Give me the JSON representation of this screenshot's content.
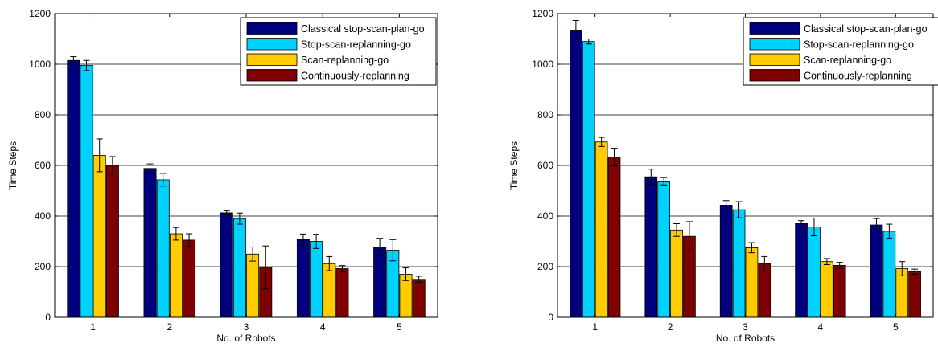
{
  "colors": {
    "series": [
      "#00007f",
      "#00d2ff",
      "#ffcc00",
      "#7f0000"
    ],
    "grid": "#000000",
    "background": "#ffffff"
  },
  "chart_data": [
    {
      "type": "bar",
      "title": "",
      "xlabel": "No. of Robots",
      "ylabel": "Time Steps",
      "ylim": [
        0,
        1200
      ],
      "yticks": [
        "0",
        "200",
        "400",
        "600",
        "800",
        "1000",
        "1200"
      ],
      "categories": [
        "1",
        "2",
        "3",
        "4",
        "5"
      ],
      "grid": "horizontal",
      "legend_position": "top-right",
      "error_bars": true,
      "series": [
        {
          "name": "Classical stop-scan-plan-go",
          "values": [
            1015,
            588,
            413,
            307,
            277
          ],
          "errors": [
            15,
            18,
            8,
            22,
            35
          ]
        },
        {
          "name": "Stop-scan-replanning-go",
          "values": [
            995,
            543,
            390,
            300,
            265
          ],
          "errors": [
            20,
            25,
            22,
            28,
            42
          ]
        },
        {
          "name": "Scan-replanning-go",
          "values": [
            640,
            330,
            250,
            212,
            170
          ],
          "errors": [
            65,
            25,
            28,
            28,
            25
          ]
        },
        {
          "name": "Continuously-replanning",
          "values": [
            600,
            305,
            197,
            192,
            150
          ],
          "errors": [
            35,
            25,
            85,
            12,
            12
          ]
        }
      ]
    },
    {
      "type": "bar",
      "title": "",
      "xlabel": "No. of Robots",
      "ylabel": "Time Steps",
      "ylim": [
        0,
        1200
      ],
      "yticks": [
        "0",
        "200",
        "400",
        "600",
        "800",
        "1000",
        "1200"
      ],
      "categories": [
        "1",
        "2",
        "3",
        "4",
        "5"
      ],
      "grid": "horizontal",
      "legend_position": "top-right",
      "error_bars": true,
      "series": [
        {
          "name": "Classical stop-scan-plan-go",
          "values": [
            1135,
            555,
            443,
            370,
            365
          ],
          "errors": [
            38,
            30,
            18,
            12,
            25
          ]
        },
        {
          "name": "Stop-scan-replanning-go",
          "values": [
            1090,
            538,
            425,
            357,
            340
          ],
          "errors": [
            10,
            15,
            32,
            35,
            28
          ]
        },
        {
          "name": "Scan-replanning-go",
          "values": [
            693,
            345,
            275,
            220,
            192
          ],
          "errors": [
            18,
            25,
            20,
            12,
            28
          ]
        },
        {
          "name": "Continuously-replanning",
          "values": [
            633,
            320,
            212,
            205,
            180
          ],
          "errors": [
            35,
            58,
            28,
            12,
            10
          ]
        }
      ]
    }
  ]
}
